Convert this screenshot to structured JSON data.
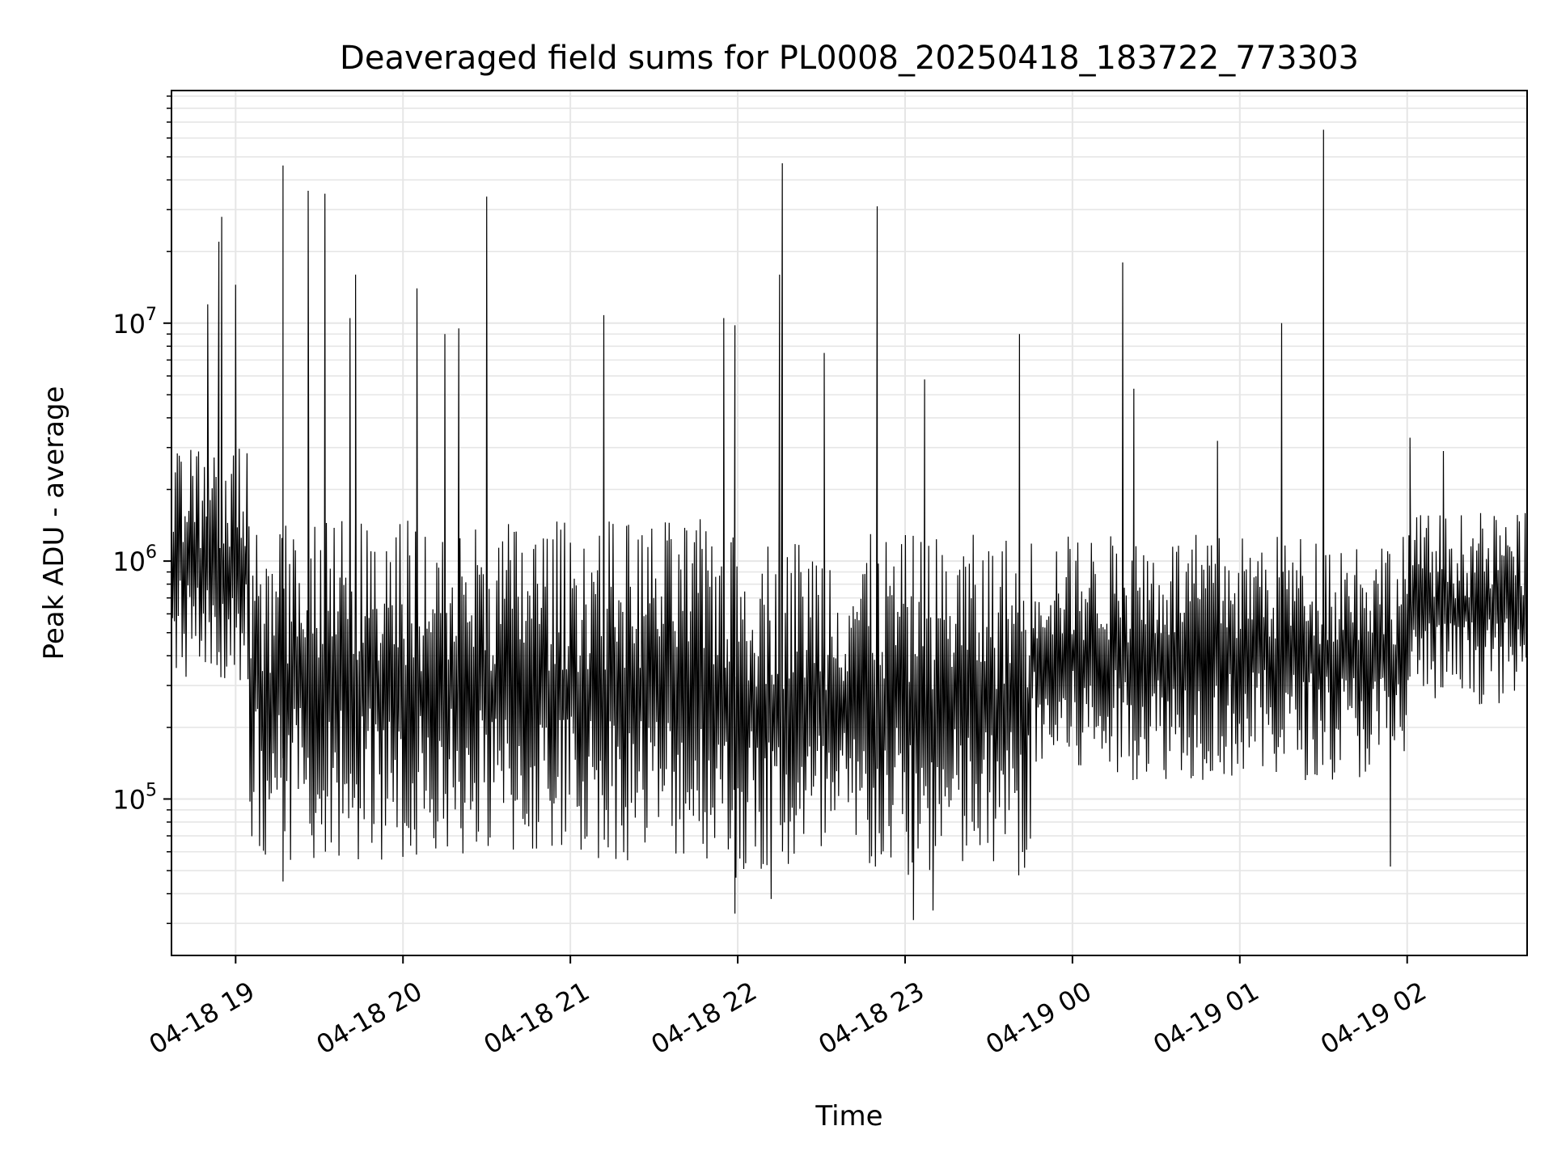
{
  "chart_data": {
    "type": "line",
    "title": "Deaveraged field sums for PL0008_20250418_183722_773303",
    "xlabel": "Time",
    "ylabel": "Peak ADU - average",
    "y_scale": "log",
    "ylim": [
      22000,
      95000000
    ],
    "xlim": [
      "2025-04-18 18:37",
      "2025-04-19 02:43"
    ],
    "grid": true,
    "grid_color": "#e6e6e6",
    "line_color": "#000000",
    "x_ticks": [
      {
        "label": "04-18 19",
        "time": "2025-04-18 19:00"
      },
      {
        "label": "04-18 20",
        "time": "2025-04-18 20:00"
      },
      {
        "label": "04-18 21",
        "time": "2025-04-18 21:00"
      },
      {
        "label": "04-18 22",
        "time": "2025-04-18 22:00"
      },
      {
        "label": "04-18 23",
        "time": "2025-04-18 23:00"
      },
      {
        "label": "04-19 00",
        "time": "2025-04-19 00:00"
      },
      {
        "label": "04-19 01",
        "time": "2025-04-19 01:00"
      },
      {
        "label": "04-19 02",
        "time": "2025-04-19 02:00"
      }
    ],
    "y_ticks": [
      {
        "base": "10",
        "exp": "5",
        "value": 100000
      },
      {
        "base": "10",
        "exp": "6",
        "value": 1000000
      },
      {
        "base": "10",
        "exp": "7",
        "value": 10000000
      }
    ],
    "segments": [
      {
        "start": "2025-04-18 18:37",
        "end": "2025-04-18 19:05",
        "low": 300000,
        "high": 3000000
      },
      {
        "start": "2025-04-18 19:05",
        "end": "2025-04-18 21:55",
        "low": 55000,
        "high": 1500000
      },
      {
        "start": "2025-04-18 21:55",
        "end": "2025-04-18 23:45",
        "low": 45000,
        "high": 1300000
      },
      {
        "start": "2025-04-18 23:45",
        "end": "2025-04-19 02:00",
        "low": 120000,
        "high": 1300000
      },
      {
        "start": "2025-04-19 02:00",
        "end": "2025-04-19 02:43",
        "low": 250000,
        "high": 1600000
      }
    ],
    "spikes": [
      {
        "time": "2025-04-18 18:50",
        "value": 12000000
      },
      {
        "time": "2025-04-18 18:55",
        "value": 28000000
      },
      {
        "time": "2025-04-18 18:54",
        "value": 22000000
      },
      {
        "time": "2025-04-18 19:00",
        "value": 14500000
      },
      {
        "time": "2025-04-18 19:17",
        "value": 46000000
      },
      {
        "time": "2025-04-18 19:26",
        "value": 36000000
      },
      {
        "time": "2025-04-18 19:32",
        "value": 35000000
      },
      {
        "time": "2025-04-18 19:43",
        "value": 16000000
      },
      {
        "time": "2025-04-18 19:41",
        "value": 10500000
      },
      {
        "time": "2025-04-18 20:05",
        "value": 14000000
      },
      {
        "time": "2025-04-18 20:15",
        "value": 9000000
      },
      {
        "time": "2025-04-18 20:20",
        "value": 9500000
      },
      {
        "time": "2025-04-18 20:30",
        "value": 34000000
      },
      {
        "time": "2025-04-18 21:12",
        "value": 10800000
      },
      {
        "time": "2025-04-18 21:55",
        "value": 10500000
      },
      {
        "time": "2025-04-18 21:59",
        "value": 9800000
      },
      {
        "time": "2025-04-18 22:16",
        "value": 47000000
      },
      {
        "time": "2025-04-18 22:15",
        "value": 16000000
      },
      {
        "time": "2025-04-18 22:31",
        "value": 7500000
      },
      {
        "time": "2025-04-18 22:50",
        "value": 31000000
      },
      {
        "time": "2025-04-18 23:07",
        "value": 5800000
      },
      {
        "time": "2025-04-18 23:41",
        "value": 9000000
      },
      {
        "time": "2025-04-19 00:18",
        "value": 18000000
      },
      {
        "time": "2025-04-19 00:22",
        "value": 5300000
      },
      {
        "time": "2025-04-19 01:15",
        "value": 10000000
      },
      {
        "time": "2025-04-19 01:30",
        "value": 65000000
      },
      {
        "time": "2025-04-19 00:52",
        "value": 3200000
      },
      {
        "time": "2025-04-19 02:01",
        "value": 3300000
      },
      {
        "time": "2025-04-19 02:13",
        "value": 2900000
      }
    ],
    "dips": [
      {
        "time": "2025-04-18 19:17",
        "value": 45000
      },
      {
        "time": "2025-04-18 21:59",
        "value": 33000
      },
      {
        "time": "2025-04-18 22:12",
        "value": 38000
      },
      {
        "time": "2025-04-18 23:03",
        "value": 31000
      },
      {
        "time": "2025-04-18 23:10",
        "value": 34000
      },
      {
        "time": "2025-04-19 01:54",
        "value": 52000
      }
    ]
  }
}
